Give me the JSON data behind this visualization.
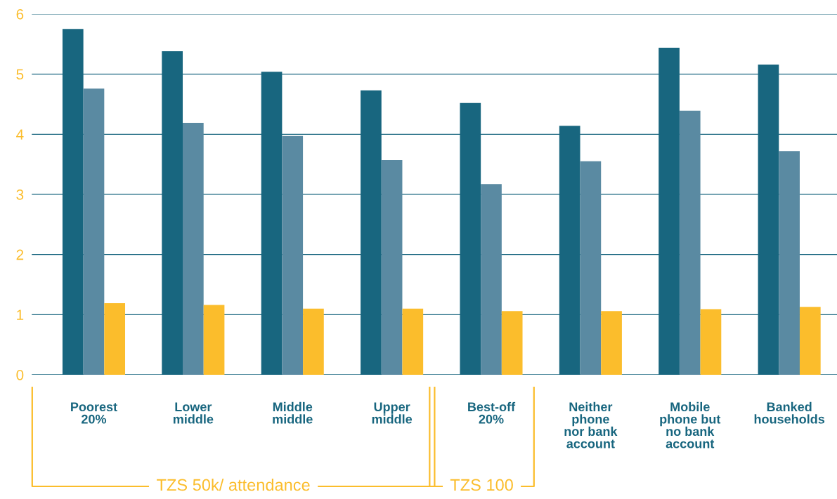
{
  "chart_data": {
    "type": "bar",
    "categories": [
      "Poorest\n20%",
      "Lower\nmiddle",
      "Middle\nmiddle",
      "Upper\nmiddle",
      "Best-off\n20%",
      "Neither\nphone\nnor bank\naccount",
      "Mobile\nphone but\nno bank\naccount",
      "Banked\nhouseholds"
    ],
    "series": [
      {
        "color": "#18667f",
        "values": [
          5.75,
          5.38,
          5.04,
          4.73,
          4.52,
          4.14,
          5.44,
          5.16
        ]
      },
      {
        "color": "#5a8aa2",
        "values": [
          4.76,
          4.19,
          3.97,
          3.57,
          3.17,
          3.55,
          4.39,
          3.72
        ]
      },
      {
        "color": "#fbbd2c",
        "values": [
          1.19,
          1.16,
          1.1,
          1.1,
          1.06,
          1.06,
          1.09,
          1.13
        ]
      }
    ],
    "ylim": [
      0,
      6
    ],
    "yticks": [
      0,
      1,
      2,
      3,
      4,
      5,
      6
    ],
    "grid": "y",
    "legend": false,
    "annotations": [
      "TZS 50k/ attendance",
      "TZS 100"
    ]
  }
}
